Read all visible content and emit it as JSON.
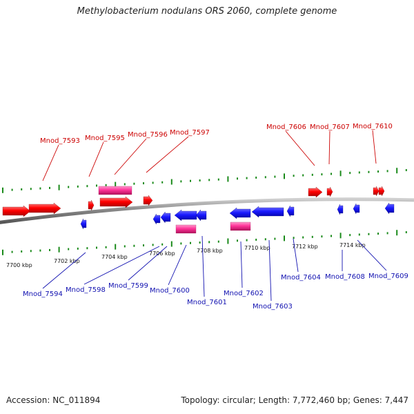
{
  "title": "Methylobacterium nodulans ORS 2060, complete genome",
  "footer": {
    "accession": "Accession: NC_011894",
    "summary": "Topology: circular; Length: 7,772,460 bp; Genes: 7,447"
  },
  "colors": {
    "forward_gene": "#ff0000",
    "reverse_gene": "#1a1aff",
    "rna_gene": "#ff3399",
    "forward_label": "#cc0000",
    "reverse_label": "#1010b0",
    "backbone": "#888888",
    "tick": "#1a8a1a"
  },
  "scale_labels": [
    "7700 kbp",
    "7702 kbp",
    "7704 kbp",
    "7706 kbp",
    "7708 kbp",
    "7710 kbp",
    "7712 kbp",
    "7714 kbp"
  ],
  "forward_genes": [
    "Mnod_7593",
    "Mnod_7595",
    "Mnod_7596",
    "Mnod_7597",
    "Mnod_7606",
    "Mnod_7607",
    "Mnod_7610"
  ],
  "reverse_genes": [
    "Mnod_7594",
    "Mnod_7598",
    "Mnod_7599",
    "Mnod_7600",
    "Mnod_7601",
    "Mnod_7602",
    "Mnod_7603",
    "Mnod_7604",
    "Mnod_7608",
    "Mnod_7609"
  ]
}
